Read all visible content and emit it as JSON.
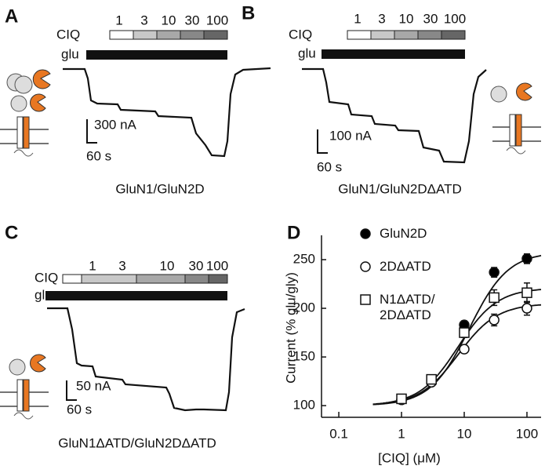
{
  "panels": [
    {
      "label": "A",
      "ciq_label": "CIQ",
      "glu_label": "glu",
      "concentrations": [
        "1",
        "3",
        "10",
        "30",
        "100"
      ],
      "current_scale": "300 nA",
      "time_scale": "60 s",
      "construct": "GluN1/GluN2D"
    },
    {
      "label": "B",
      "ciq_label": "CIQ",
      "glu_label": "glu",
      "concentrations": [
        "1",
        "3",
        "10",
        "30",
        "100"
      ],
      "current_scale": "100 nA",
      "time_scale": "60 s",
      "construct": "GluN1/GluN2DΔATD"
    },
    {
      "label": "C",
      "ciq_label": "CIQ",
      "glu_label": "glu",
      "concentrations": [
        "1",
        "3",
        "10",
        "30",
        "100"
      ],
      "current_scale": "50 nA",
      "time_scale": "60 s",
      "construct": "GluN1ΔATD/GluN2DΔATD"
    }
  ],
  "chart_data": {
    "type": "scatter",
    "panel_label": "D",
    "x_label": "[CIQ] (μM)",
    "y_label": "Current  (% glu/gly)",
    "xscale": "log",
    "xlim": [
      0.053,
      168
    ],
    "xticks": [
      0.1,
      1,
      10,
      100
    ],
    "ylim": [
      88,
      275
    ],
    "yticks": [
      100,
      150,
      200,
      250
    ],
    "x": [
      1,
      3,
      10,
      30,
      100
    ],
    "series": [
      {
        "name": "GluN2D",
        "color": "#000000",
        "marker": "circle",
        "values": [
          106,
          126,
          183,
          237,
          251
        ],
        "errors": [
          3,
          3,
          4,
          5,
          5
        ],
        "fit": {
          "bottom": 100,
          "top": 258,
          "ec50": 12,
          "hill": 1.4
        }
      },
      {
        "name": "2DΔATD",
        "color": "#ffffff",
        "marker": "circle",
        "values": [
          106,
          124,
          158,
          188,
          200
        ],
        "errors": [
          3,
          3,
          4,
          6,
          7
        ],
        "fit": {
          "bottom": 100,
          "top": 205,
          "ec50": 8,
          "hill": 1.4
        }
      },
      {
        "name": "N1ΔATD/\n2DΔATD",
        "color": "#ffffff",
        "marker": "square",
        "values": [
          107,
          127,
          175,
          211,
          216
        ],
        "errors": [
          3,
          3,
          5,
          8,
          10
        ],
        "fit": {
          "bottom": 100,
          "top": 221,
          "ec50": 8,
          "hill": 1.4
        }
      }
    ]
  }
}
